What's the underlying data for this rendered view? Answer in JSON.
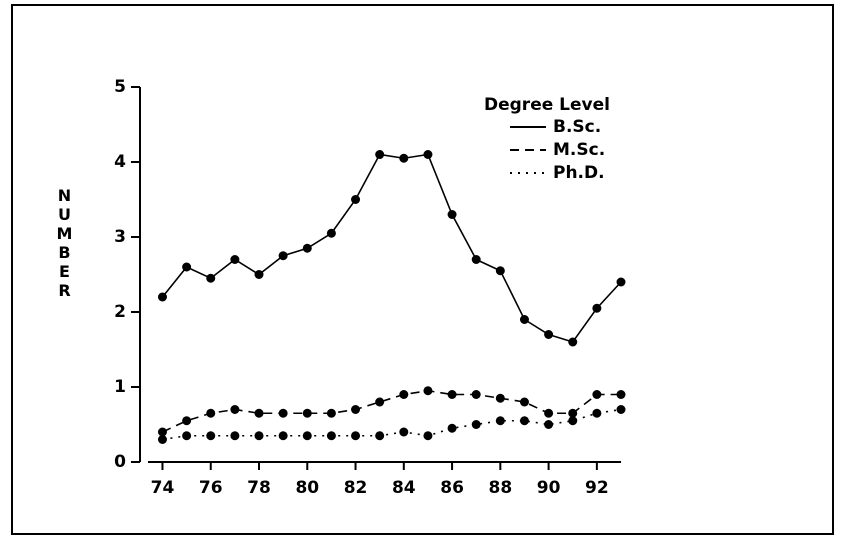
{
  "chart_data": {
    "type": "line",
    "y_label": "NUMBER",
    "legend_title": "Degree Level",
    "x": [
      74,
      75,
      76,
      77,
      78,
      79,
      80,
      81,
      82,
      83,
      84,
      85,
      86,
      87,
      88,
      89,
      90,
      91,
      92,
      93
    ],
    "series": [
      {
        "name": "B.Sc.",
        "color": "#000000",
        "linestyle": "solid",
        "values": [
          2.2,
          2.6,
          2.45,
          2.7,
          2.5,
          2.75,
          2.85,
          3.05,
          3.5,
          4.1,
          4.05,
          4.1,
          3.3,
          2.7,
          2.55,
          1.9,
          1.7,
          1.6,
          2.05,
          2.4
        ]
      },
      {
        "name": "M.Sc.",
        "color": "#000000",
        "linestyle": "dashed",
        "values": [
          0.4,
          0.55,
          0.65,
          0.7,
          0.65,
          0.65,
          0.65,
          0.65,
          0.7,
          0.8,
          0.9,
          0.95,
          0.9,
          0.9,
          0.85,
          0.8,
          0.65,
          0.65,
          0.9,
          0.9
        ]
      },
      {
        "name": "Ph.D.",
        "color": "#000000",
        "linestyle": "dotted",
        "values": [
          0.3,
          0.35,
          0.35,
          0.35,
          0.35,
          0.35,
          0.35,
          0.35,
          0.35,
          0.35,
          0.4,
          0.35,
          0.45,
          0.5,
          0.55,
          0.55,
          0.5,
          0.55,
          0.65,
          0.7
        ]
      }
    ],
    "xlim": [
      73.4,
      93
    ],
    "xticks": [
      74,
      76,
      78,
      80,
      82,
      84,
      86,
      88,
      90,
      92
    ],
    "ylim": [
      0,
      5
    ],
    "yticks": [
      0,
      1,
      2,
      3,
      4,
      5
    ],
    "grid": false
  }
}
